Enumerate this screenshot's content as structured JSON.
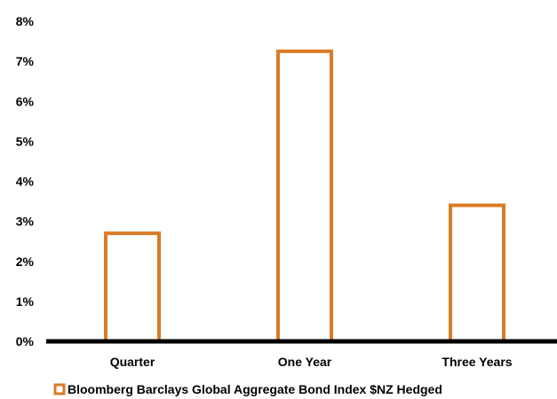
{
  "colors": {
    "bar_stroke": "#D97B27",
    "bar_fill": "#FFFFFF",
    "axis": "#000000"
  },
  "chart_data": {
    "type": "bar",
    "categories": [
      "Quarter",
      "One Year",
      "Three Years"
    ],
    "series": [
      {
        "name": "Bloomberg Barclays Global Aggregate Bond Index $NZ Hedged",
        "values": [
          2.7,
          7.25,
          3.4
        ]
      }
    ],
    "ylim": [
      0,
      8
    ],
    "y_ticks": [
      0,
      1,
      2,
      3,
      4,
      5,
      6,
      7,
      8
    ],
    "y_tick_labels": [
      "0%",
      "1%",
      "2%",
      "3%",
      "4%",
      "5%",
      "6%",
      "7%",
      "8%"
    ],
    "grid": false,
    "legend_position": "bottom"
  }
}
